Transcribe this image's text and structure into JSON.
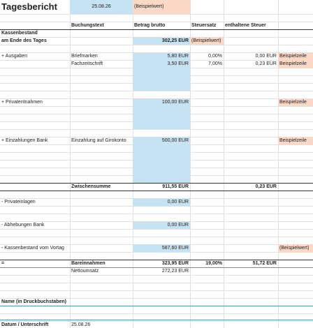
{
  "title": "Tagesbericht",
  "date": "25.08.26",
  "date_note": "(Beispielwert)",
  "headers": [
    "Buchungstext",
    "Betrag brutto",
    "Steuersatz",
    "enthaltene Steuer"
  ],
  "opening": {
    "label_1": "Kassenbestand",
    "label_2": "am Ende des Tages",
    "amount": "302,25 EUR",
    "note": "(Beispielwert)"
  },
  "sections": [
    {
      "label": "+ Ausgaben",
      "lines": [
        {
          "text": "Briefmarken",
          "amount": "5,80 EUR",
          "rate": "0,00%",
          "tax": "0,00 EUR",
          "note": "Beispielzeile"
        },
        {
          "text": "Fachzeitschrift",
          "amount": "3,50 EUR",
          "rate": "7,00%",
          "tax": "0,23 EUR",
          "note": "Beispielzeile"
        }
      ]
    },
    {
      "label": "+ Privatentnahmen",
      "lines": [
        {
          "amount": "100,00 EUR",
          "note": "Beispielzeile"
        }
      ]
    },
    {
      "label": "+ Einzahlungen Bank",
      "lines": [
        {
          "text": "Einzahlung auf Girokonto",
          "amount": "500,00 EUR",
          "note": "Beispielzeile"
        }
      ]
    }
  ],
  "subtotal": {
    "label": "Zwischensumme",
    "amount": "911,55 EUR",
    "tax": "0,23 EUR"
  },
  "deductions": [
    {
      "label": "- Privateinlagen",
      "amount": "0,00 EUR"
    },
    {
      "label": "- Abhebungen Bank",
      "amount": "0,00 EUR"
    },
    {
      "label": "- Kassenbestand vom Vortag",
      "amount": "587,60 EUR",
      "note": "(Beispielwert)"
    }
  ],
  "result": {
    "sign": "=",
    "label": "Bareinnahmen",
    "amount": "323,95 EUR",
    "rate": "19,00%",
    "tax": "51,72 EUR",
    "net_label": "Nettoumsatz",
    "net_amount": "272,23 EUR"
  },
  "signature": {
    "name_label": "Name (in Druckbuchstaben)",
    "date_label": "Datum / Unterschrift",
    "date": "25.08.26"
  }
}
